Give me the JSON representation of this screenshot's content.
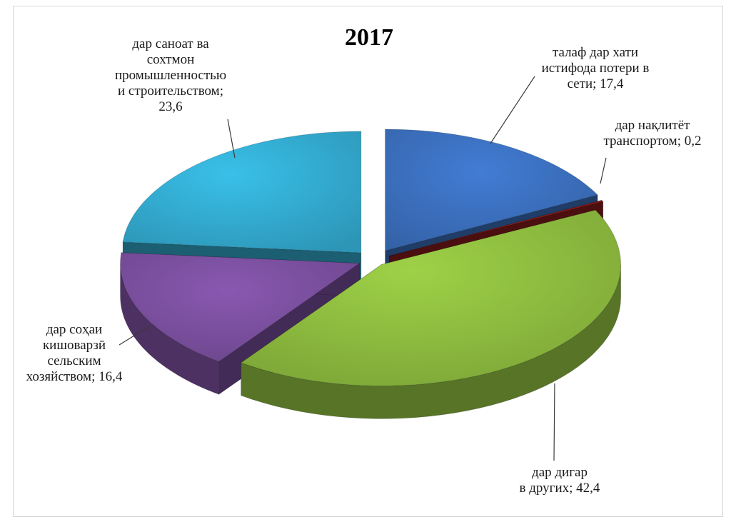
{
  "chart_data": {
    "type": "pie",
    "title": "2017",
    "slices": [
      {
        "label_lines": [
          "талаф дар хати",
          "истифода  потери в",
          "сети; 17,4"
        ],
        "value": 17.4,
        "color": "#3b6fbd"
      },
      {
        "label_lines": [
          "дар нақлитёт",
          "транспортом; 0,2"
        ],
        "value": 0.2,
        "color": "#8a1c1c"
      },
      {
        "label_lines": [
          "дар дигар",
          "в других; 42,4"
        ],
        "value": 42.4,
        "color": "#8dbb3f"
      },
      {
        "label_lines": [
          "дар соҳаи",
          "кишоварзӣ",
          "сельским",
          "хозяйством; 16,4"
        ],
        "value": 16.4,
        "color": "#7a4f9e"
      },
      {
        "label_lines": [
          "дар саноат ва",
          "сохтмон",
          "промышленностью",
          "и строительством;",
          "23,6"
        ],
        "value": 23.6,
        "color": "#33abd0"
      }
    ],
    "legend": "none",
    "style": "3d-exploded"
  }
}
